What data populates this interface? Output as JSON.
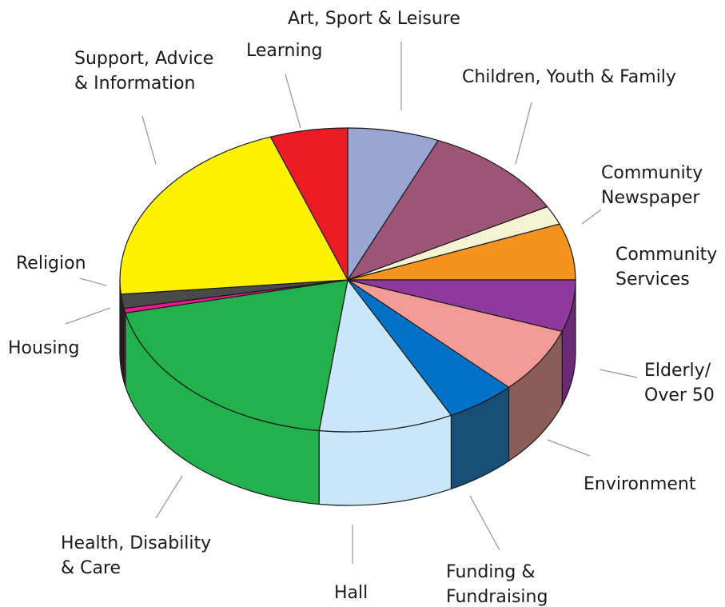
{
  "chart_data": {
    "type": "pie",
    "style": "3d",
    "title": "",
    "legend": "none",
    "categories": [
      "Art, Sport & Leisure",
      "Children, Youth & Family",
      "Community Newspaper",
      "Community Services",
      "Elderly/ Over 50",
      "Environment",
      "Funding & Fundraising",
      "Hall",
      "Health, Disability & Care",
      "Housing",
      "Religion",
      "Support, Advice & Information",
      "Learning"
    ],
    "values": [
      6.5,
      10.5,
      2,
      6,
      5.5,
      7,
      5,
      9.5,
      19.5,
      0.5,
      1.5,
      21,
      5.5
    ],
    "colors": [
      "#9aa5d4",
      "#9c5477",
      "#f4f3d2",
      "#f6921e",
      "#8e3a9c",
      "#f29a96",
      "#0072c6",
      "#c9e7f8",
      "#22b14c",
      "#ee1791",
      "#4a4a4a",
      "#fff200",
      "#ed1c24"
    ],
    "side_colors": [
      "#6f78a0",
      "#6e3a54",
      "#b5b49c",
      "#b86c14",
      "#6a2a75",
      "#8a5d58",
      "#174e78",
      "#c9e7f8",
      "#22b14c",
      "#a8106a",
      "#222222",
      "#b5ab00",
      "#a8121a"
    ],
    "labels": [
      [
        "Art, Sport & Leisure"
      ],
      [
        "Children, Youth & Family"
      ],
      [
        "Community",
        "Newspaper"
      ],
      [
        "Community",
        "Services"
      ],
      [
        "Elderly/",
        "Over 50"
      ],
      [
        "Environment"
      ],
      [
        "Funding &",
        "Fundraising"
      ],
      [
        "Hall"
      ],
      [
        "Health, Disability",
        "& Care"
      ],
      [
        "Housing"
      ],
      [
        "Religion"
      ],
      [
        "Support, Advice",
        "& Information"
      ],
      [
        "Learning"
      ]
    ]
  }
}
